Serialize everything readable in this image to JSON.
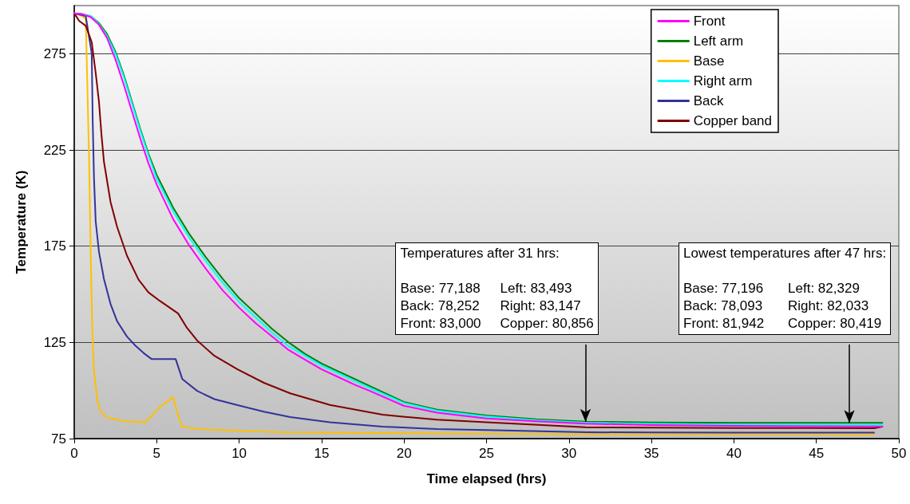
{
  "chart_data": {
    "type": "line",
    "xlabel": "Time elapsed (hrs)",
    "ylabel": "Temperature (K)",
    "xlim": [
      0,
      50
    ],
    "xticks": [
      0,
      5,
      10,
      15,
      20,
      25,
      30,
      35,
      40,
      45,
      50
    ],
    "ylim": [
      75,
      300
    ],
    "yticks": [
      75,
      125,
      175,
      225,
      275
    ],
    "grid": "y",
    "legend": "top right",
    "marker": "none",
    "line_style": "solid",
    "series": [
      {
        "name": "Front",
        "color": "#ff00ff",
        "x": [
          0,
          0.5,
          1,
          1.5,
          2,
          2.5,
          3,
          3.5,
          4,
          4.5,
          5,
          6,
          7,
          8,
          9,
          10,
          11,
          12,
          13,
          14,
          15,
          16,
          17,
          18,
          20,
          22,
          25,
          28,
          31,
          35,
          40,
          45,
          49
        ],
        "values": [
          296,
          295.5,
          294,
          290,
          283,
          272,
          259,
          245,
          231,
          218,
          207,
          189,
          175,
          163,
          152,
          143,
          135,
          128,
          121,
          116,
          111,
          107,
          103,
          99.5,
          92,
          88.5,
          85.5,
          84,
          82.8,
          82,
          81.6,
          81.4,
          81.3
        ]
      },
      {
        "name": "Left arm",
        "color": "#008000",
        "x": [
          0,
          0.5,
          1,
          1.5,
          2,
          2.5,
          3,
          3.5,
          4,
          4.5,
          5,
          6,
          7,
          8,
          9,
          10,
          11,
          12,
          13,
          14,
          15,
          16,
          17,
          18,
          20,
          22,
          25,
          28,
          31,
          35,
          40,
          45,
          49
        ],
        "values": [
          296,
          295.5,
          294.5,
          291,
          285,
          276,
          264,
          250,
          236,
          223,
          212,
          195,
          181,
          169,
          158,
          148,
          140,
          132,
          125,
          119,
          114,
          110,
          106,
          102,
          94,
          90,
          87,
          85,
          83.8,
          83.4,
          83.2,
          83.2,
          83.2
        ]
      },
      {
        "name": "Base",
        "color": "#ffc000",
        "x": [
          0,
          0.5,
          0.7,
          0.9,
          1,
          1.1,
          1.2,
          1.4,
          1.6,
          2,
          3,
          4.3,
          4.6,
          5.2,
          6,
          6.2,
          6.5,
          7,
          8,
          10,
          13,
          20,
          30,
          40,
          48.5
        ],
        "values": [
          296,
          294.5,
          293,
          220,
          170,
          130,
          110,
          95,
          89,
          86,
          84,
          83.5,
          86,
          91.5,
          96.5,
          90,
          81.5,
          80.5,
          79.8,
          79,
          78.2,
          77.8,
          77.3,
          77.3,
          77.2
        ]
      },
      {
        "name": "Right arm",
        "color": "#00ffff",
        "x": [
          0,
          0.5,
          1,
          1.5,
          2,
          2.5,
          3,
          3.5,
          4,
          4.5,
          5,
          6,
          7,
          8,
          9,
          10,
          11,
          12,
          13,
          14,
          15,
          16,
          17,
          18,
          20,
          22,
          25,
          28,
          31,
          35,
          40,
          45,
          49
        ],
        "values": [
          296,
          295.5,
          294.5,
          290.5,
          284,
          275,
          263,
          249,
          235,
          222,
          210,
          193,
          179,
          167,
          156,
          146,
          138,
          130,
          123,
          118,
          113,
          109,
          105,
          101,
          93.5,
          89.5,
          86.5,
          84.5,
          83.3,
          82.7,
          82.4,
          82.3,
          82.3
        ]
      },
      {
        "name": "Back",
        "color": "#333399",
        "x": [
          0,
          0.5,
          0.7,
          1.06,
          1.12,
          1.2,
          1.3,
          1.5,
          1.8,
          2.2,
          2.6,
          3.2,
          3.7,
          4.2,
          4.7,
          6.15,
          6.55,
          7.45,
          8.5,
          9.9,
          11.5,
          13.1,
          15.5,
          18.7,
          22,
          25,
          31,
          35,
          40,
          48.5
        ],
        "values": [
          296,
          295,
          294.5,
          275,
          240,
          210,
          188,
          172,
          158,
          145,
          136,
          128,
          123.4,
          119.5,
          116.3,
          116.3,
          106,
          99.8,
          95.5,
          92.4,
          89,
          86.2,
          83.5,
          81.2,
          80,
          79.5,
          78.3,
          78.2,
          78.1,
          78.1
        ]
      },
      {
        "name": "Copper band",
        "color": "#800000",
        "x": [
          0,
          0.3,
          0.7,
          1.06,
          1.3,
          1.5,
          1.65,
          1.8,
          2.2,
          2.6,
          3.2,
          3.9,
          4.5,
          5.2,
          6.3,
          6.8,
          7.45,
          8.5,
          9.9,
          11.5,
          13.1,
          15.5,
          18.7,
          22,
          25,
          31,
          35,
          40,
          48.5,
          49
        ],
        "values": [
          296,
          292,
          289.5,
          281,
          265,
          250,
          233,
          219,
          198,
          185,
          170,
          157.6,
          151,
          146.5,
          140,
          133,
          126,
          118,
          111,
          104,
          98.5,
          92.5,
          87.4,
          84.8,
          83.5,
          80.9,
          80.7,
          80.5,
          80.4,
          81.2
        ]
      }
    ],
    "annotations": [
      "Temperatures after 31 hrs:",
      "Base: 77,188",
      "Left: 83,493",
      "Back: 78,252",
      "Right: 83,147",
      "Front: 83,000",
      {
        "text": "Copper: 80,856",
        "x": 31,
        "y": 83.8
      },
      "Lowest temperatures after 47 hrs:",
      "Base: 77,196",
      "Left: 82,329",
      "Back: 78,093",
      "Right: 82,033",
      "Front: 81,942",
      {
        "text": "Copper: 80,419",
        "x": 47,
        "y": 83.2
      }
    ]
  }
}
